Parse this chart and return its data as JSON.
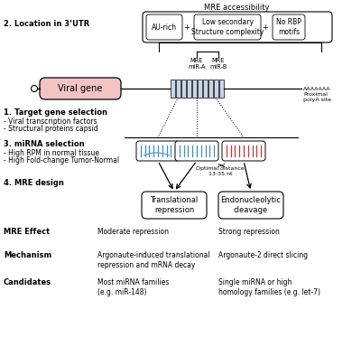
{
  "bg_color": "#ffffff",
  "section1_label": "1. Target gene selection",
  "section1_bullets": [
    "- Viral transcription factors",
    "- Structural proteins capsid"
  ],
  "section2_label": "2. Location in 3’UTR",
  "section3_label": "3. miRNA selection",
  "section3_bullets": [
    "- High RPM in normal tissue",
    "- High Fold-change Tumor-Normal"
  ],
  "section4_label": "4. MRE design",
  "mre_accessibility_label": "MRE accessibility",
  "box1_text": "AU-rich",
  "box2_text": "Low secondary\nStructure complexity",
  "box3_text": "No RBP\nmotifs",
  "mre_a_label": "MRE\nmiR-A",
  "mre_b_label": "MRE\nmiR-B",
  "viral_gene_label": "Viral gene",
  "polya_label": "AAAAAAA\nProximal\npolyA site",
  "optimal_distance_label": "Optimal distance\n13-35 nt",
  "translational_repression_label": "Translational\nrepression",
  "endonucleolytic_cleavage_label": "Endonucleolytic\ncleavage",
  "mre_effect_label": "MRE Effect",
  "mechanism_label": "Mechanism",
  "candidates_label": "Candidates",
  "moderate_repression": "Moderate repression",
  "strong_repression": "Strong repression",
  "argonaute_translational": "Argonaute-induced translational\nrepression and mRNA decay",
  "argonaute_slicing": "Argonaute-2 direct slicing",
  "most_mirna": "Most miRNA families\n(e.g. miR-148)",
  "single_mirna": "Single miRNA or high\nhomology families (e.g. let-7)",
  "viral_gene_fill": "#f2c4c4",
  "mre_bar_fill_light": "#c8d4e8",
  "mre_bar_fill_dark": "#b0c0dc"
}
